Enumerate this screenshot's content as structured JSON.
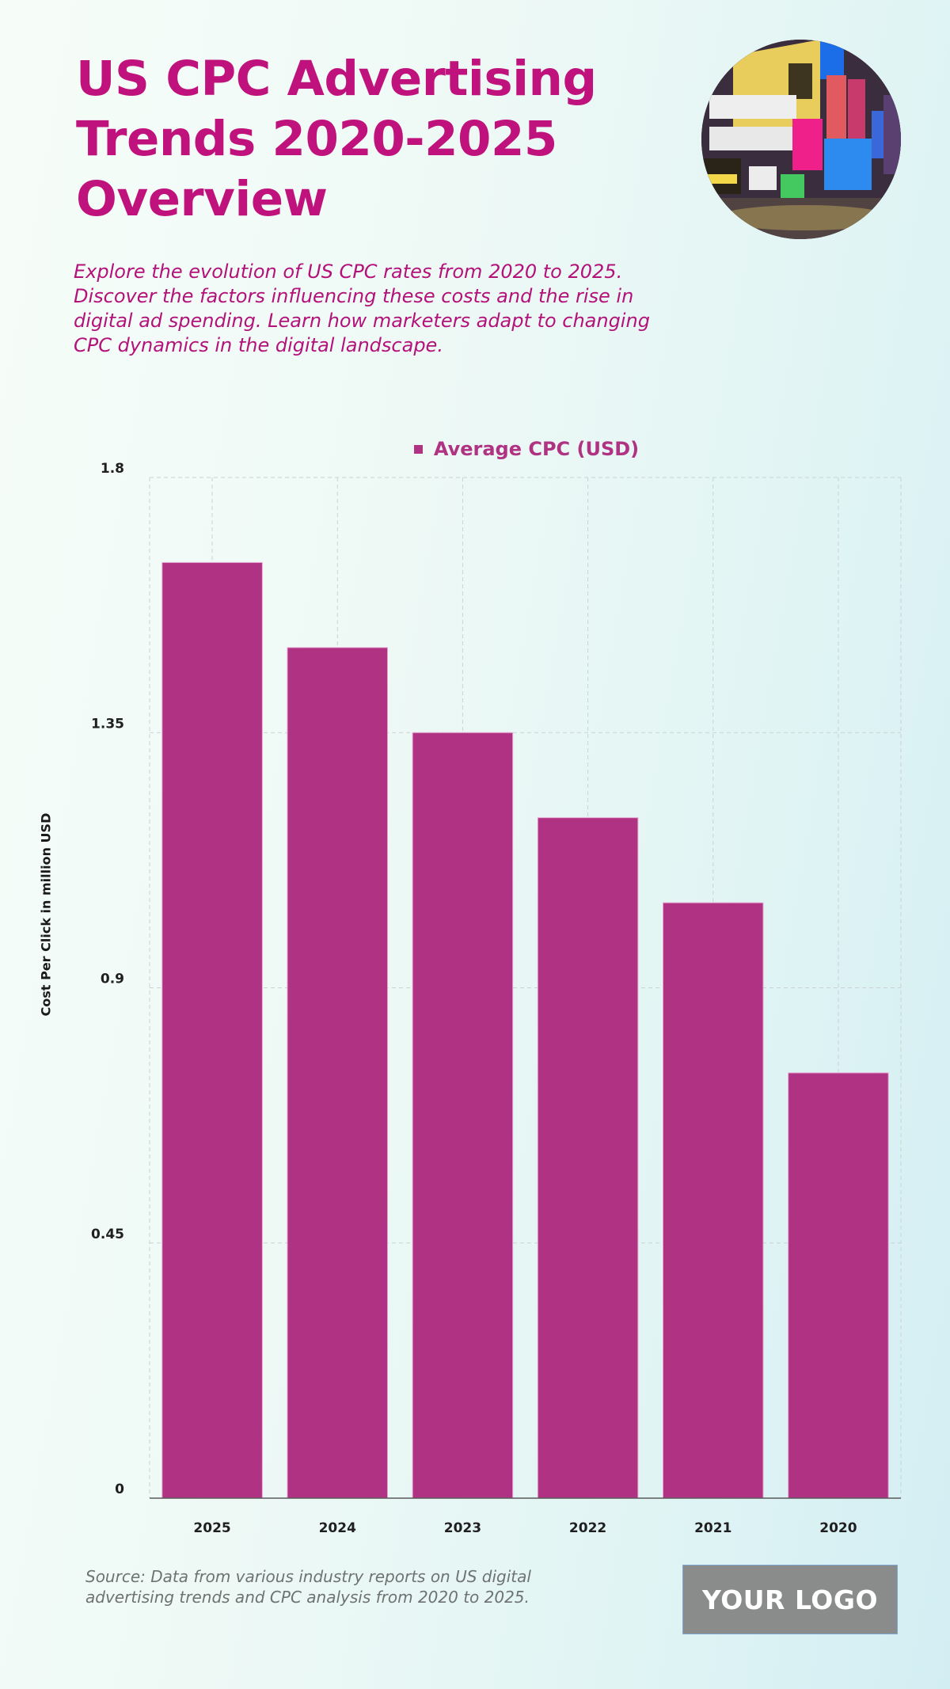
{
  "header": {
    "title": "US CPC Advertising Trends 2020-2025 Overview",
    "subtitle": "Explore the evolution of US CPC rates from 2020 to 2025. Discover the factors influencing these costs and the rise in digital ad spending. Learn how marketers adapt to changing CPC dynamics in the digital landscape.",
    "hero_image": "times-square-billboards-photo"
  },
  "colors": {
    "title": "#c0127c",
    "bar": "#b03282",
    "logo_bg": "#8a8c8c"
  },
  "chart_data": {
    "type": "bar",
    "title": "",
    "xlabel": "",
    "ylabel": "Cost Per Click in million USD",
    "categories": [
      "2025",
      "2024",
      "2023",
      "2022",
      "2021",
      "2020"
    ],
    "series": [
      {
        "name": "Average CPC (USD)",
        "values": [
          1.65,
          1.5,
          1.35,
          1.2,
          1.05,
          0.75
        ]
      }
    ],
    "ylim": [
      0,
      1.8
    ],
    "yticks": [
      0,
      0.45,
      0.9,
      1.35,
      1.8
    ],
    "ytick_labels": [
      "0",
      "0.45",
      "0.9",
      "1.35",
      "1.8"
    ],
    "grid": true,
    "legend": "top-center"
  },
  "footer": {
    "source": "Source: Data from various industry reports on US digital advertising trends and CPC analysis from 2020 to 2025.",
    "logo": "YOUR LOGO"
  }
}
